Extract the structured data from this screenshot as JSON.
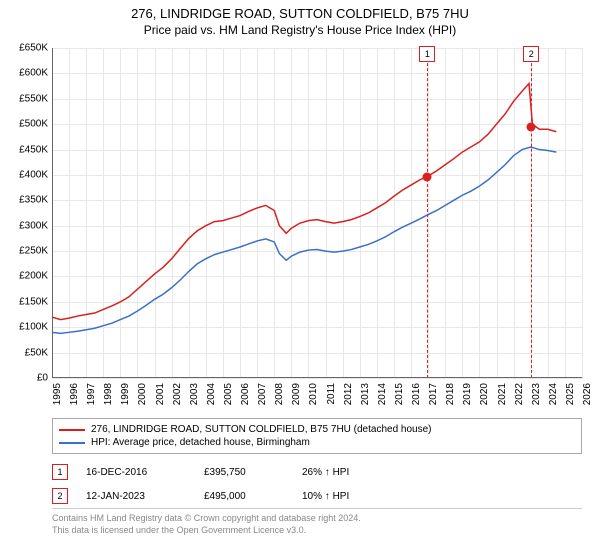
{
  "title": "276, LINDRIDGE ROAD, SUTTON COLDFIELD, B75 7HU",
  "subtitle": "Price paid vs. HM Land Registry's House Price Index (HPI)",
  "chart": {
    "type": "line",
    "xlim": [
      1995,
      2026
    ],
    "ylim": [
      0,
      650
    ],
    "y_unit_prefix": "£",
    "y_unit_suffix": "K",
    "ytick_step": 50,
    "xtick_step": 1,
    "grid_color": "#e8e8e8",
    "background_color": "#ffffff",
    "axis_color": "#666666",
    "label_fontsize": 10,
    "line_width": 1.5,
    "series": [
      {
        "name": "276, LINDRIDGE ROAD, SUTTON COLDFIELD, B75 7HU (detached house)",
        "color": "#d9201e",
        "points": [
          [
            1995,
            120
          ],
          [
            1995.5,
            115
          ],
          [
            1996,
            118
          ],
          [
            1996.5,
            122
          ],
          [
            1997,
            125
          ],
          [
            1997.5,
            128
          ],
          [
            1998,
            135
          ],
          [
            1998.5,
            142
          ],
          [
            1999,
            150
          ],
          [
            1999.5,
            160
          ],
          [
            2000,
            175
          ],
          [
            2000.5,
            190
          ],
          [
            2001,
            205
          ],
          [
            2001.5,
            218
          ],
          [
            2002,
            235
          ],
          [
            2002.5,
            255
          ],
          [
            2003,
            275
          ],
          [
            2003.5,
            290
          ],
          [
            2004,
            300
          ],
          [
            2004.5,
            308
          ],
          [
            2005,
            310
          ],
          [
            2005.5,
            315
          ],
          [
            2006,
            320
          ],
          [
            2006.5,
            328
          ],
          [
            2007,
            335
          ],
          [
            2007.5,
            340
          ],
          [
            2008,
            330
          ],
          [
            2008.3,
            300
          ],
          [
            2008.7,
            285
          ],
          [
            2009,
            295
          ],
          [
            2009.5,
            305
          ],
          [
            2010,
            310
          ],
          [
            2010.5,
            312
          ],
          [
            2011,
            308
          ],
          [
            2011.5,
            305
          ],
          [
            2012,
            308
          ],
          [
            2012.5,
            312
          ],
          [
            2013,
            318
          ],
          [
            2013.5,
            325
          ],
          [
            2014,
            335
          ],
          [
            2014.5,
            345
          ],
          [
            2015,
            358
          ],
          [
            2015.5,
            370
          ],
          [
            2016,
            380
          ],
          [
            2016.5,
            390
          ],
          [
            2017,
            398
          ],
          [
            2017.5,
            408
          ],
          [
            2018,
            420
          ],
          [
            2018.5,
            432
          ],
          [
            2019,
            445
          ],
          [
            2019.5,
            455
          ],
          [
            2020,
            465
          ],
          [
            2020.5,
            480
          ],
          [
            2021,
            500
          ],
          [
            2021.5,
            520
          ],
          [
            2022,
            545
          ],
          [
            2022.5,
            565
          ],
          [
            2022.9,
            580
          ],
          [
            2023.1,
            500
          ],
          [
            2023.5,
            490
          ],
          [
            2024,
            490
          ],
          [
            2024.5,
            485
          ]
        ]
      },
      {
        "name": "HPI: Average price, detached house, Birmingham",
        "color": "#3b6fc9",
        "points": [
          [
            1995,
            90
          ],
          [
            1995.5,
            88
          ],
          [
            1996,
            90
          ],
          [
            1996.5,
            92
          ],
          [
            1997,
            95
          ],
          [
            1997.5,
            98
          ],
          [
            1998,
            103
          ],
          [
            1998.5,
            108
          ],
          [
            1999,
            115
          ],
          [
            1999.5,
            122
          ],
          [
            2000,
            132
          ],
          [
            2000.5,
            143
          ],
          [
            2001,
            155
          ],
          [
            2001.5,
            165
          ],
          [
            2002,
            178
          ],
          [
            2002.5,
            193
          ],
          [
            2003,
            210
          ],
          [
            2003.5,
            225
          ],
          [
            2004,
            235
          ],
          [
            2004.5,
            243
          ],
          [
            2005,
            248
          ],
          [
            2005.5,
            253
          ],
          [
            2006,
            258
          ],
          [
            2006.5,
            264
          ],
          [
            2007,
            270
          ],
          [
            2007.5,
            274
          ],
          [
            2008,
            268
          ],
          [
            2008.3,
            245
          ],
          [
            2008.7,
            232
          ],
          [
            2009,
            240
          ],
          [
            2009.5,
            248
          ],
          [
            2010,
            252
          ],
          [
            2010.5,
            253
          ],
          [
            2011,
            250
          ],
          [
            2011.5,
            248
          ],
          [
            2012,
            250
          ],
          [
            2012.5,
            253
          ],
          [
            2013,
            258
          ],
          [
            2013.5,
            263
          ],
          [
            2014,
            270
          ],
          [
            2014.5,
            278
          ],
          [
            2015,
            288
          ],
          [
            2015.5,
            297
          ],
          [
            2016,
            305
          ],
          [
            2016.5,
            313
          ],
          [
            2017,
            322
          ],
          [
            2017.5,
            330
          ],
          [
            2018,
            340
          ],
          [
            2018.5,
            350
          ],
          [
            2019,
            360
          ],
          [
            2019.5,
            368
          ],
          [
            2020,
            378
          ],
          [
            2020.5,
            390
          ],
          [
            2021,
            405
          ],
          [
            2021.5,
            420
          ],
          [
            2022,
            438
          ],
          [
            2022.5,
            450
          ],
          [
            2023,
            455
          ],
          [
            2023.5,
            450
          ],
          [
            2024,
            448
          ],
          [
            2024.5,
            445
          ]
        ]
      }
    ],
    "markers": [
      {
        "index": "1",
        "x": 2016.96,
        "y": 395.75,
        "line_color": "#d9201e",
        "dot_color": "#d9201e"
      },
      {
        "index": "2",
        "x": 2023.03,
        "y": 495,
        "line_color": "#d9201e",
        "dot_color": "#d9201e"
      }
    ]
  },
  "legend": {
    "border_color": "#aaaaaa"
  },
  "sales": [
    {
      "index": "1",
      "date": "16-DEC-2016",
      "price": "£395,750",
      "pct": "26% ↑ HPI",
      "color": "#d9201e"
    },
    {
      "index": "2",
      "date": "12-JAN-2023",
      "price": "£495,000",
      "pct": "10% ↑ HPI",
      "color": "#d9201e"
    }
  ],
  "footer": {
    "line1": "Contains HM Land Registry data © Crown copyright and database right 2024.",
    "line2": "This data is licensed under the Open Government Licence v3.0."
  }
}
